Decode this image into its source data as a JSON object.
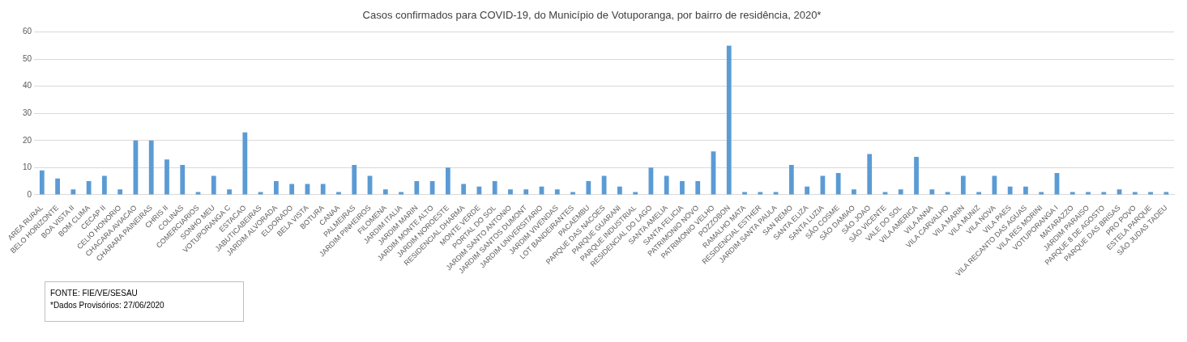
{
  "chart_data": {
    "type": "bar",
    "title": "Casos confirmados para COVID-19, do Município de Votuporanga, por bairro de residência, 2020*",
    "categories": [
      "AREA RURAL",
      "BELO HORIZONTE",
      "BOA VISTA II",
      "BOM CLIMA",
      "CECAP II",
      "CELIO HONORIO",
      "CHACARA AVIACAO",
      "CHARARA PAINEIRAS",
      "CHRIS II",
      "COLINAS",
      "COMERCIARIOS",
      "SONHO MEU",
      "VOTUPORANGA C",
      "ESTACAO",
      "JABUTICABEIRAS",
      "JARDIM ALVORADA",
      "ELDORADO",
      "BELA VISTA",
      "BOTURA",
      "CANAA",
      "PALMEIRAS",
      "JARDIM PINHEIROS",
      "FILOMENA",
      "JARDIM ITALIA",
      "JARDIM MARIN",
      "JARDIM MONTE ALTO",
      "JARDIM NOROESTE",
      "RESIDENCIAL DHARMA",
      "MONTE VERDE",
      "PORTAL DO SOL",
      "JARDIM SANTO ANTONIO",
      "JARDIM SANTOS DUMONT",
      "JARDIM UNIVERSITARIO",
      "JARDIM VIVENDAS",
      "LOT BANDEIRANTES",
      "PACAEMBU",
      "PARQUE DAS NACOES",
      "PARQUE GUARANI",
      "PARQUE INDUSTRIAL",
      "RESIDENCIAL DO LAGO",
      "SANTA AMELIA",
      "SANTA FELICIA",
      "PATRIMONIO NOVO",
      "PATRIMONIO VELHO",
      "POZZOBON",
      "RAMALHO MATA",
      "RESIDENCIAL ESTHER",
      "JARDIM SANTA PAULA",
      "SAN REMO",
      "SANTA ELIZA",
      "SANTA LUZIA",
      "SÃO COSME",
      "SÃO DAMIAO",
      "SÃO JOAO",
      "SÃO VICENTE",
      "VALE DO SOL",
      "VILA AMERICA",
      "VILA ANNA",
      "VILA CARVALHO",
      "VILA MARIN",
      "VILA MUNIZ",
      "VILA NOVA",
      "VILA PAES",
      "VILA RECANTO DAS AGUAS",
      "VILA RES MORINI",
      "VOTUPORANGA I",
      "MATARAZZO",
      "JARDIM PARAISO",
      "PARQUE 8 DE AGOSTO",
      "PARQUE DAS BRISAS",
      "PRO POVO",
      "ESTELA PARQUE",
      "SÃO JUDAS TADEU"
    ],
    "values": [
      9,
      6,
      2,
      5,
      7,
      2,
      20,
      20,
      13,
      11,
      1,
      7,
      2,
      23,
      1,
      5,
      4,
      4,
      4,
      1,
      11,
      7,
      2,
      1,
      5,
      5,
      10,
      4,
      3,
      5,
      2,
      2,
      3,
      2,
      1,
      5,
      7,
      3,
      1,
      10,
      7,
      5,
      5,
      16,
      55,
      1,
      1,
      1,
      11,
      3,
      7,
      8,
      2,
      15,
      1,
      2,
      14,
      2,
      1,
      7,
      1,
      7,
      3,
      3,
      1,
      8,
      1,
      1,
      1,
      2,
      1,
      1,
      1
    ],
    "color": "#5b9bd5",
    "ylim": [
      0,
      60
    ],
    "yticks": [
      0,
      10,
      20,
      30,
      40,
      50,
      60
    ],
    "grid": "y",
    "legend": false,
    "annotations": [
      "FONTE: FIE/VE/SESAU",
      "*Dados Provisórios: 27/06/2020"
    ]
  }
}
